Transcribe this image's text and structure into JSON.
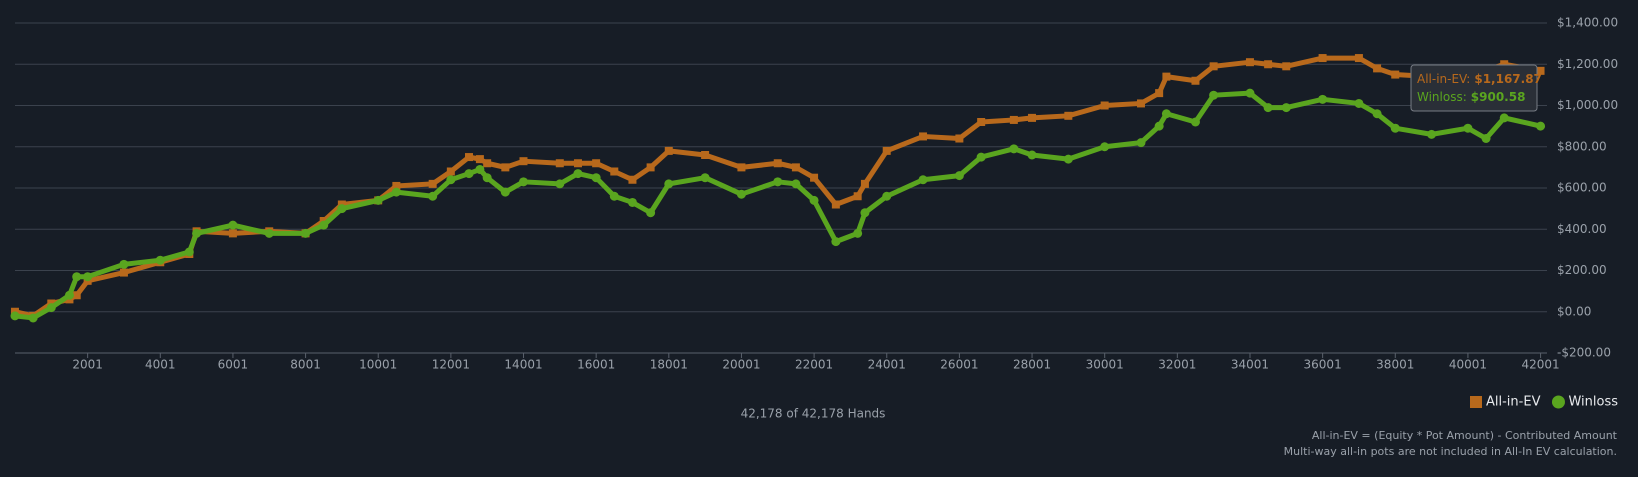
{
  "chart_data": {
    "type": "line",
    "x": [
      0,
      500,
      1000,
      1500,
      1700,
      2001,
      3000,
      4000,
      4800,
      5000,
      6000,
      7000,
      8000,
      8500,
      9000,
      10000,
      10500,
      11500,
      12000,
      12500,
      12800,
      13000,
      13500,
      14000,
      15000,
      15500,
      16000,
      16500,
      17000,
      17500,
      18000,
      19000,
      20000,
      21000,
      21500,
      22000,
      22600,
      23200,
      23400,
      24000,
      25000,
      26000,
      26600,
      27500,
      28000,
      29000,
      30000,
      31000,
      31500,
      31700,
      32500,
      33000,
      34000,
      34500,
      35000,
      36000,
      37000,
      37500,
      38000,
      39000,
      40000,
      40500,
      41000,
      42000
    ],
    "series": [
      {
        "name": "All-in-EV",
        "color": "#b8691c",
        "marker": "square",
        "values": [
          0,
          -20,
          40,
          60,
          80,
          150,
          190,
          240,
          280,
          390,
          380,
          390,
          380,
          440,
          520,
          540,
          610,
          620,
          680,
          750,
          740,
          720,
          700,
          730,
          720,
          720,
          720,
          680,
          640,
          700,
          780,
          760,
          700,
          720,
          700,
          650,
          520,
          560,
          620,
          780,
          850,
          840,
          920,
          930,
          940,
          950,
          1000,
          1010,
          1060,
          1140,
          1120,
          1190,
          1210,
          1200,
          1190,
          1230,
          1230,
          1180,
          1150,
          1140,
          1160,
          1170,
          1200,
          1168
        ]
      },
      {
        "name": "Winloss",
        "color": "#5aa51f",
        "marker": "circle",
        "values": [
          -20,
          -30,
          20,
          80,
          170,
          170,
          230,
          250,
          290,
          380,
          420,
          380,
          380,
          420,
          500,
          540,
          580,
          560,
          640,
          670,
          690,
          650,
          580,
          630,
          620,
          670,
          650,
          560,
          530,
          480,
          620,
          650,
          570,
          630,
          620,
          540,
          340,
          380,
          480,
          560,
          640,
          660,
          750,
          790,
          760,
          740,
          800,
          820,
          900,
          960,
          920,
          1050,
          1060,
          990,
          990,
          1030,
          1010,
          960,
          890,
          860,
          890,
          840,
          940,
          900
        ]
      }
    ],
    "xlim": [
      1,
      42178
    ],
    "xticks": [
      2001,
      4001,
      6001,
      8001,
      10001,
      12001,
      14001,
      16001,
      18001,
      20001,
      22001,
      24001,
      26001,
      28001,
      30001,
      32001,
      34001,
      36001,
      38001,
      40001,
      42001
    ],
    "ylim": [
      -200,
      1400
    ],
    "yticks": [
      {
        "value": -200,
        "label": "-$200.00"
      },
      {
        "value": 0,
        "label": "$0.00"
      },
      {
        "value": 200,
        "label": "$200.00"
      },
      {
        "value": 400,
        "label": "$400.00"
      },
      {
        "value": 600,
        "label": "$600.00"
      },
      {
        "value": 800,
        "label": "$800.00"
      },
      {
        "value": 1000,
        "label": "$1,000.00"
      },
      {
        "value": 1200,
        "label": "$1,200.00"
      },
      {
        "value": 1400,
        "label": "$1,400.00"
      }
    ],
    "grid": true,
    "legend": "bottom-right",
    "tooltip": [
      {
        "label": "All-in-EV:",
        "value": "$1,167.87"
      },
      {
        "label": "Winloss:",
        "value": "$900.58"
      }
    ],
    "hands_label": "42,178 of 42,178 Hands",
    "notes": [
      "All-in-EV = (Equity * Pot Amount) - Contributed Amount",
      "Multi-way all-in pots are not included in All-In EV calculation."
    ]
  }
}
